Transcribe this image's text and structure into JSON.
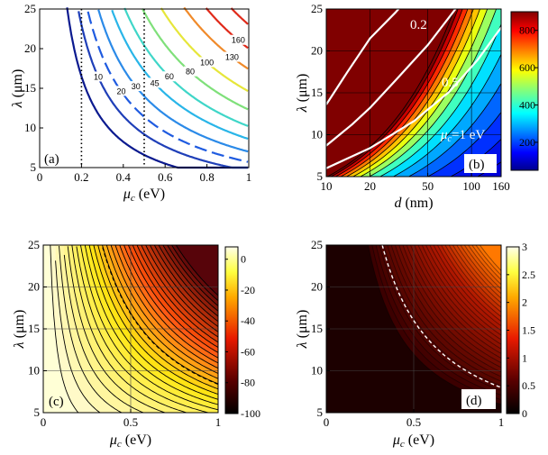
{
  "chart_data": [
    {
      "panel": "(a)",
      "type": "line",
      "subtype": "contour",
      "xlabel": "μc (eV)",
      "ylabel": "λ (μm)",
      "xlim": [
        0,
        1
      ],
      "ylim": [
        5,
        25
      ],
      "xticks": [
        "0",
        "0.2",
        "0.4",
        "0.6",
        "0.8",
        "1"
      ],
      "yticks": [
        "5",
        "10",
        "15",
        "20",
        "25"
      ],
      "vlines": [
        0.2,
        0.5
      ],
      "contour_levels": [
        "10",
        "20",
        "30",
        "45",
        "60",
        "80",
        "100",
        "130",
        "160"
      ],
      "colors": [
        "#0b1a8f",
        "#1f3fb8",
        "#1f5be0",
        "#2b8ae8",
        "#29b5e8",
        "#3fd6c8",
        "#7fe07a",
        "#e6e63a",
        "#f08a2a",
        "#e02a1a"
      ]
    },
    {
      "panel": "(b)",
      "type": "heatmap",
      "xlabel": "d (nm)",
      "ylabel": "λ (μm)",
      "xscale": "log",
      "xlim": [
        10,
        160
      ],
      "ylim": [
        5,
        25
      ],
      "xticks": [
        "10",
        "20",
        "50",
        "100",
        "160"
      ],
      "yticks": [
        "5",
        "10",
        "15",
        "20",
        "25"
      ],
      "line_labels": [
        "0.2",
        "0.5",
        "μc=1 eV"
      ],
      "colorbar_ticks": [
        "200",
        "400",
        "600",
        "800"
      ],
      "colorbar_range": [
        50,
        900
      ]
    },
    {
      "panel": "(c)",
      "type": "heatmap",
      "xlabel": "μc (eV)",
      "ylabel": "λ (μm)",
      "xlim": [
        0,
        1
      ],
      "ylim": [
        5,
        25
      ],
      "xticks": [
        "0",
        "0.5",
        "1"
      ],
      "yticks": [
        "5",
        "10",
        "15",
        "20",
        "25"
      ],
      "colorbar_ticks": [
        "0",
        "-20",
        "-40",
        "-60",
        "-80",
        "-100"
      ],
      "colorbar_range": [
        -100,
        8
      ]
    },
    {
      "panel": "(d)",
      "type": "heatmap",
      "xlabel": "μc (eV)",
      "ylabel": "λ (μm)",
      "xlim": [
        0,
        1
      ],
      "ylim": [
        5,
        25
      ],
      "xticks": [
        "0",
        "0.5",
        "1"
      ],
      "yticks": [
        "5",
        "10",
        "15",
        "20",
        "25"
      ],
      "colorbar_ticks": [
        "0",
        "0.5",
        "1",
        "1.5",
        "2",
        "2.5",
        "3"
      ],
      "colorbar_range": [
        0,
        3
      ]
    }
  ]
}
